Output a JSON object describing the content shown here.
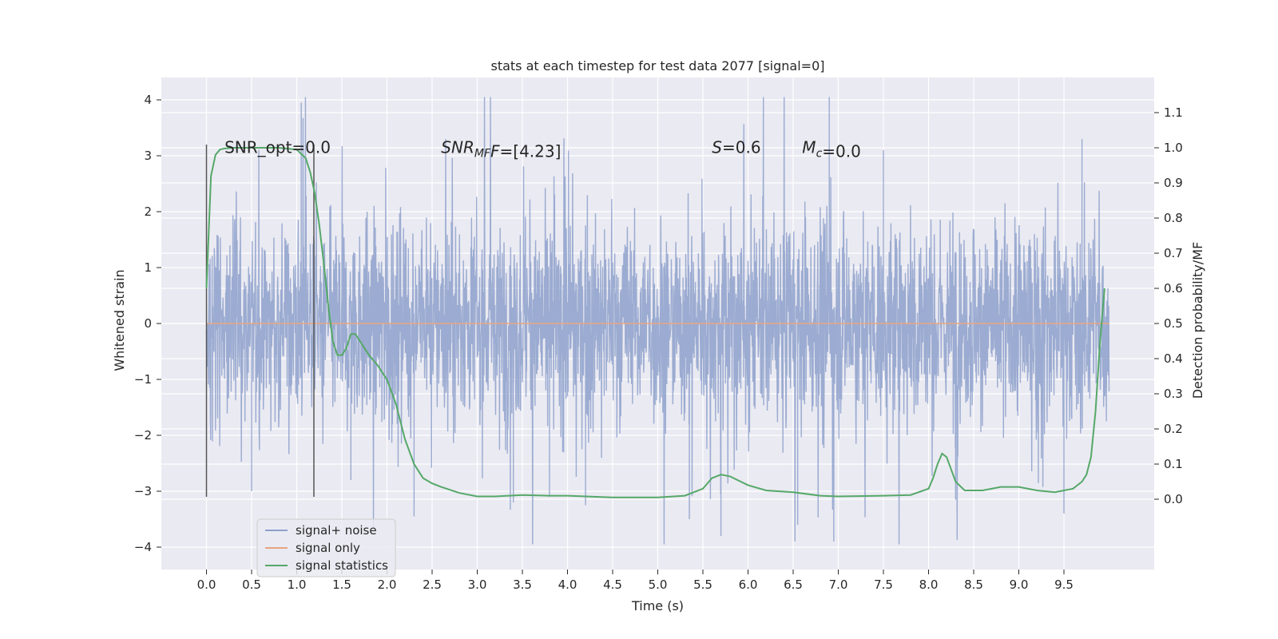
{
  "chart_data": {
    "type": "line",
    "title": "stats at each timestep for test data 2077 [signal=0]",
    "xlabel": "Time (s)",
    "ylabel_left": "Whitened strain",
    "ylabel_right": "Detection probability/MF",
    "xlim": [
      -0.5,
      10.5
    ],
    "ylim_left": [
      -4.4,
      4.4
    ],
    "ylim_right": [
      -0.2,
      1.2
    ],
    "xticks": [
      0.0,
      0.5,
      1.0,
      1.5,
      2.0,
      2.5,
      3.0,
      3.5,
      4.0,
      4.5,
      5.0,
      5.5,
      6.0,
      6.5,
      7.0,
      7.5,
      8.0,
      8.5,
      9.0,
      9.5
    ],
    "xtick_labels": [
      "0.0",
      "0.5",
      "1.0",
      "1.5",
      "2.0",
      "2.5",
      "3.0",
      "3.5",
      "4.0",
      "4.5",
      "5.0",
      "5.5",
      "6.0",
      "6.5",
      "7.0",
      "7.5",
      "8.0",
      "8.5",
      "9.0",
      "9.5"
    ],
    "yticks_left": [
      -4,
      -3,
      -2,
      -1,
      0,
      1,
      2,
      3,
      4
    ],
    "ytick_labels_left": [
      "−4",
      "−3",
      "−2",
      "−1",
      "0",
      "1",
      "2",
      "3",
      "4"
    ],
    "yticks_right": [
      0.0,
      0.1,
      0.2,
      0.3,
      0.4,
      0.5,
      0.6,
      0.7,
      0.8,
      0.9,
      1.0,
      1.1
    ],
    "ytick_labels_right": [
      "0.0",
      "0.1",
      "0.2",
      "0.3",
      "0.4",
      "0.5",
      "0.6",
      "0.7",
      "0.8",
      "0.9",
      "1.0",
      "1.1"
    ],
    "grid": true,
    "legend_position": "lower-left",
    "annotations": [
      {
        "x": 0.2,
        "y": 3.15,
        "parts": [
          {
            "text": "SNR_opt=0.0",
            "italic": false
          }
        ]
      },
      {
        "x": 2.6,
        "y": 3.15,
        "parts": [
          {
            "text": "SNR",
            "italic": true
          },
          {
            "text": "MF",
            "italic": true,
            "sub": true
          },
          {
            "text": "F",
            "italic": true
          },
          {
            "text": "=[4.23]",
            "italic": false
          }
        ]
      },
      {
        "x": 5.6,
        "y": 3.15,
        "parts": [
          {
            "text": "S",
            "italic": true
          },
          {
            "text": "=0.6",
            "italic": false
          }
        ]
      },
      {
        "x": 6.6,
        "y": 3.15,
        "parts": [
          {
            "text": "M",
            "italic": true
          },
          {
            "text": "c",
            "italic": true,
            "sub": true
          },
          {
            "text": "=0.0",
            "italic": false
          }
        ]
      }
    ],
    "vlines": [
      {
        "x": 0.0,
        "ymin": -3.1,
        "ymax": 3.2
      },
      {
        "x": 1.19,
        "ymin": -3.1,
        "ymax": 3.2
      }
    ],
    "noise_band": {
      "duration": 10.0,
      "typical_amplitude": 1.3,
      "peak_min": -3.95,
      "peak_max": 4.05
    },
    "series": [
      {
        "name": "signal+ noise",
        "color": "#8da0cb",
        "axis": "left",
        "x_range": [
          0.0,
          10.0
        ],
        "notable_peaks": [
          [
            0.5,
            -3.0
          ],
          [
            1.05,
            3.95
          ],
          [
            1.6,
            -2.8
          ],
          [
            2.3,
            -3.45
          ],
          [
            2.65,
            3.3
          ],
          [
            3.4,
            -3.2
          ],
          [
            3.8,
            -3.1
          ],
          [
            4.2,
            -3.25
          ],
          [
            5.35,
            -3.5
          ],
          [
            5.7,
            -3.8
          ],
          [
            6.55,
            -3.6
          ],
          [
            6.9,
            4.05
          ],
          [
            6.95,
            -3.9
          ],
          [
            7.5,
            3.1
          ],
          [
            8.3,
            -3.15
          ],
          [
            9.5,
            -3.4
          ],
          [
            9.7,
            3.3
          ]
        ]
      },
      {
        "name": "signal only",
        "color": "#e8a57f",
        "axis": "left",
        "x": [
          0.0,
          10.0
        ],
        "y": [
          0.0,
          0.0
        ]
      },
      {
        "name": "signal statistics",
        "color": "#55a868",
        "axis": "right",
        "x": [
          0.0,
          0.05,
          0.1,
          0.15,
          0.2,
          0.3,
          0.5,
          0.8,
          1.0,
          1.1,
          1.15,
          1.2,
          1.25,
          1.3,
          1.35,
          1.4,
          1.45,
          1.5,
          1.55,
          1.6,
          1.65,
          1.7,
          1.75,
          1.8,
          1.9,
          2.0,
          2.1,
          2.2,
          2.3,
          2.4,
          2.5,
          2.6,
          2.8,
          3.0,
          3.2,
          3.5,
          3.8,
          4.0,
          4.5,
          5.0,
          5.3,
          5.5,
          5.6,
          5.7,
          5.8,
          6.0,
          6.2,
          6.5,
          6.8,
          7.0,
          7.5,
          7.8,
          8.0,
          8.05,
          8.1,
          8.15,
          8.2,
          8.3,
          8.4,
          8.6,
          8.8,
          9.0,
          9.2,
          9.4,
          9.6,
          9.7,
          9.75,
          9.8,
          9.85,
          9.9,
          9.95
        ],
        "y": [
          0.6,
          0.92,
          0.98,
          0.995,
          0.998,
          1.0,
          1.0,
          1.0,
          0.995,
          0.97,
          0.93,
          0.87,
          0.78,
          0.67,
          0.55,
          0.45,
          0.41,
          0.41,
          0.43,
          0.47,
          0.47,
          0.45,
          0.43,
          0.41,
          0.38,
          0.34,
          0.27,
          0.17,
          0.1,
          0.06,
          0.045,
          0.035,
          0.018,
          0.008,
          0.008,
          0.012,
          0.01,
          0.01,
          0.005,
          0.005,
          0.01,
          0.03,
          0.06,
          0.07,
          0.065,
          0.04,
          0.025,
          0.02,
          0.01,
          0.008,
          0.01,
          0.012,
          0.03,
          0.06,
          0.1,
          0.13,
          0.12,
          0.05,
          0.025,
          0.025,
          0.035,
          0.035,
          0.025,
          0.02,
          0.03,
          0.05,
          0.07,
          0.12,
          0.25,
          0.45,
          0.6
        ]
      }
    ]
  }
}
